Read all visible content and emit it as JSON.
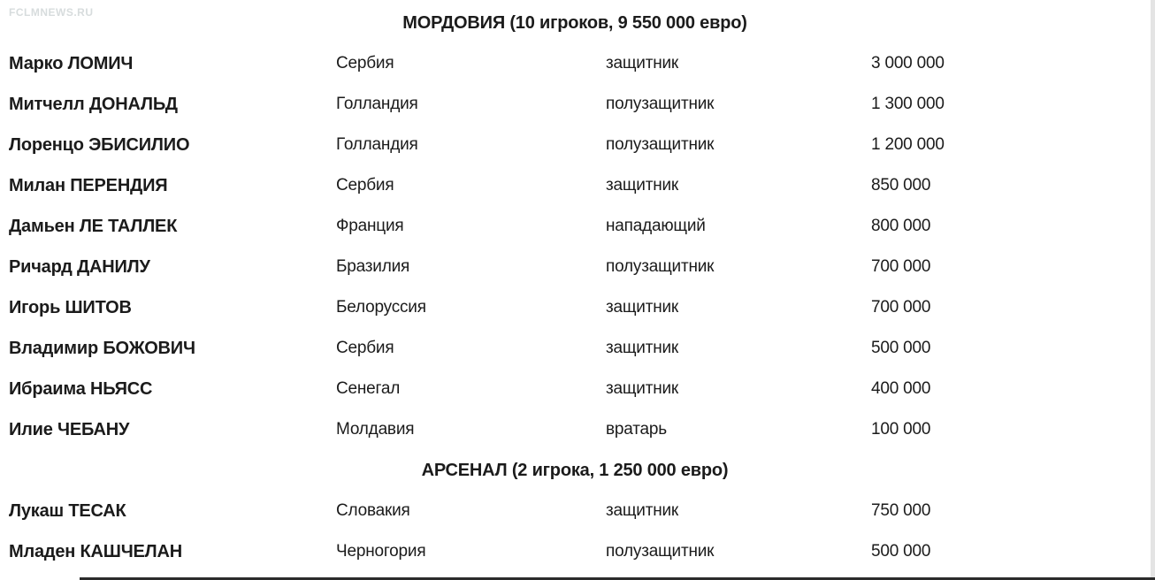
{
  "watermark": "FCLMNEWS.RU",
  "colors": {
    "text": "#1b1b1b",
    "watermark": "#d7dcdd",
    "scrollbar_track": "#e4e4e4",
    "bottom_divider": "#2b2b2b",
    "page_background": "#ffffff"
  },
  "sections": [
    {
      "title": "МОРДОВИЯ (10 игроков, 9 550 000 евро)",
      "players": [
        {
          "name": "Марко ЛОМИЧ",
          "country": "Сербия",
          "position": "защитник",
          "value": "3 000 000"
        },
        {
          "name": "Митчелл ДОНАЛЬД",
          "country": "Голландия",
          "position": "полузащитник",
          "value": "1 300 000"
        },
        {
          "name": "Лоренцо ЭБИСИЛИО",
          "country": "Голландия",
          "position": "полузащитник",
          "value": "1 200 000"
        },
        {
          "name": "Милан ПЕРЕНДИЯ",
          "country": "Сербия",
          "position": "защитник",
          "value": "850 000"
        },
        {
          "name": "Дамьен ЛЕ ТАЛЛЕК",
          "country": "Франция",
          "position": "нападающий",
          "value": "800 000"
        },
        {
          "name": "Ричард ДАНИЛУ",
          "country": "Бразилия",
          "position": "полузащитник",
          "value": "700 000"
        },
        {
          "name": "Игорь ШИТОВ",
          "country": "Белоруссия",
          "position": "защитник",
          "value": "700 000"
        },
        {
          "name": "Владимир БОЖОВИЧ",
          "country": "Сербия",
          "position": "защитник",
          "value": "500 000"
        },
        {
          "name": "Ибраима НЬЯСС",
          "country": "Сенегал",
          "position": "защитник",
          "value": "400 000"
        },
        {
          "name": "Илие ЧЕБАНУ",
          "country": "Молдавия",
          "position": "вратарь",
          "value": "100 000"
        }
      ]
    },
    {
      "title": "АРСЕНАЛ (2 игрока, 1 250 000 евро)",
      "players": [
        {
          "name": "Лукаш ТЕСАК",
          "country": "Словакия",
          "position": "защитник",
          "value": "750 000"
        },
        {
          "name": "Младен КАШЧЕЛАН",
          "country": "Черногория",
          "position": "полузащитник",
          "value": "500 000"
        }
      ]
    }
  ]
}
